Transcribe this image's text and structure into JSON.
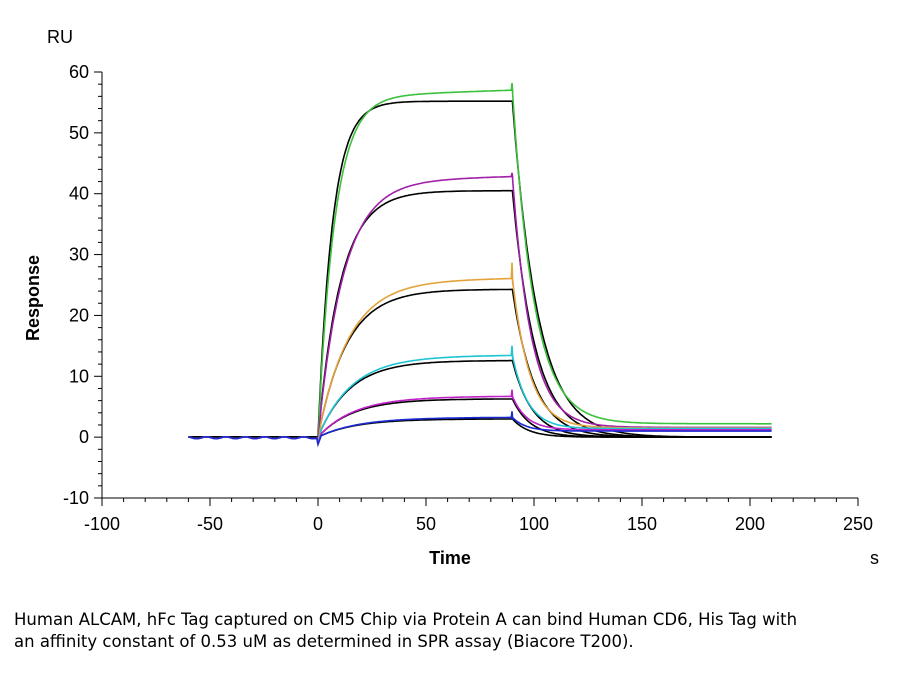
{
  "chart_data": {
    "type": "line",
    "ylabel": "Response",
    "xlabel": "Time",
    "y_unit": "RU",
    "x_unit": "s",
    "xlim": [
      -100,
      250
    ],
    "ylim": [
      -10,
      60
    ],
    "x_ticks": [
      -100,
      -50,
      0,
      50,
      100,
      150,
      200,
      250
    ],
    "y_ticks": [
      -10,
      0,
      10,
      20,
      30,
      40,
      50,
      60
    ],
    "grid": false,
    "legend": "none",
    "x_range_data": [
      -60,
      210
    ],
    "association_start": 0,
    "dissociation_start": 90,
    "series": [
      {
        "color": "#3cc13c",
        "plateau": 55.9,
        "rise_rate": 0.13,
        "decay_rate": 0.1,
        "baseline_end": 2.2,
        "spike": 1.2
      },
      {
        "color": "#a020a8",
        "plateau": 42.0,
        "rise_rate": 0.085,
        "decay_rate": 0.115,
        "baseline_end": 1.6,
        "spike": 0.6
      },
      {
        "color": "#e3a23a",
        "plateau": 25.6,
        "rise_rate": 0.07,
        "decay_rate": 0.125,
        "baseline_end": 1.5,
        "spike": 2.6
      },
      {
        "color": "#1fc4d4",
        "plateau": 13.2,
        "rise_rate": 0.065,
        "decay_rate": 0.14,
        "baseline_end": 1.4,
        "spike": 1.6
      },
      {
        "color": "#c020c8",
        "plateau": 6.6,
        "rise_rate": 0.06,
        "decay_rate": 0.15,
        "baseline_end": 1.2,
        "spike": 1.1
      },
      {
        "color": "#1a2ad0",
        "plateau": 3.2,
        "rise_rate": 0.055,
        "decay_rate": 0.16,
        "baseline_end": 1.0,
        "spike": 1.0
      }
    ],
    "fit_series": [
      {
        "color": "#000000",
        "plateau": 55.2,
        "rise_rate": 0.15,
        "decay_rate": 0.085
      },
      {
        "color": "#000000",
        "plateau": 40.5,
        "rise_rate": 0.095,
        "decay_rate": 0.095
      },
      {
        "color": "#000000",
        "plateau": 24.3,
        "rise_rate": 0.075,
        "decay_rate": 0.1
      },
      {
        "color": "#000000",
        "plateau": 12.6,
        "rise_rate": 0.068,
        "decay_rate": 0.11
      },
      {
        "color": "#000000",
        "plateau": 6.3,
        "rise_rate": 0.062,
        "decay_rate": 0.12
      },
      {
        "color": "#000000",
        "plateau": 3.0,
        "rise_rate": 0.058,
        "decay_rate": 0.13
      }
    ]
  },
  "caption": "Human ALCAM, hFc Tag captured on CM5 Chip via Protein A can bind Human CD6, His Tag with an affinity constant of 0.53 uM as determined in SPR assay (Biacore T200)."
}
